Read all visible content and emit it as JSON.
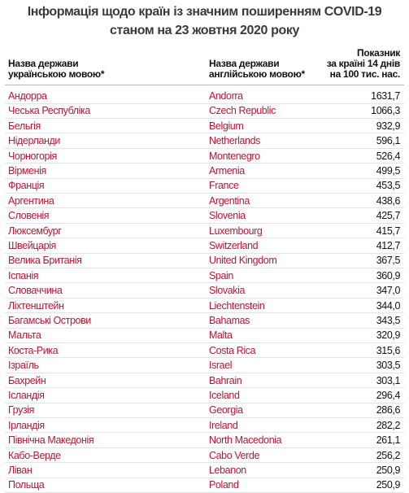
{
  "header": {
    "title": [
      "Інформація щодо країн із значним поширенням COVID-19",
      "станом на 23 жовтня 2020 року"
    ]
  },
  "table": {
    "columns": [
      [
        "Назва держави",
        "українською мовою*"
      ],
      [
        "Назва держави",
        "англійською мовою*"
      ],
      [
        "Показник",
        "за країні 14 днів",
        "на 100 тис. нас."
      ]
    ],
    "rows": [
      [
        "Андорра",
        "Andorra",
        "1631,7"
      ],
      [
        "Чеська Республіка",
        "Czech Republic",
        "1066,3"
      ],
      [
        "Бельгія",
        "Belgium",
        "932,9"
      ],
      [
        "Нідерланди",
        "Netherlands",
        "596,1"
      ],
      [
        "Чорногорія",
        "Montenegro",
        "526,4"
      ],
      [
        "Вірменія",
        "Armenia",
        "499,5"
      ],
      [
        "Франція",
        "France",
        "453,5"
      ],
      [
        "Аргентина",
        "Argentina",
        "438,6"
      ],
      [
        "Словенія",
        "Slovenia",
        "425,7"
      ],
      [
        "Люксембург",
        "Luxembourg",
        "415,7"
      ],
      [
        "Швейцарія",
        "Switzerland",
        "412,7"
      ],
      [
        "Велика Британія",
        "United Kingdom",
        "367,5"
      ],
      [
        "Іспанія",
        "Spain",
        "360,9"
      ],
      [
        "Словаччина",
        "Slovakia",
        "347,0"
      ],
      [
        "Ліхтенштейн",
        "Liechtenstein",
        "344,0"
      ],
      [
        "Багамські Острови",
        "Bahamas",
        "343,5"
      ],
      [
        "Мальта",
        "Malta",
        "320,9"
      ],
      [
        "Коста-Рика",
        "Costa Rica",
        "315,6"
      ],
      [
        "Ізраїль",
        "Israel",
        "303,5"
      ],
      [
        "Бахрейн",
        "Bahrain",
        "303,1"
      ],
      [
        "Ісландія",
        "Iceland",
        "296,4"
      ],
      [
        "Грузія",
        "Georgia",
        "286,6"
      ],
      [
        "Ірландія",
        "Ireland",
        "282,2"
      ],
      [
        "Північна Македонія",
        "North Macedonia",
        "261,1"
      ],
      [
        "Кабо-Верде",
        "Cabo Verde",
        "256,2"
      ],
      [
        "Ліван",
        "Lebanon",
        "250,9"
      ],
      [
        "Польща",
        "Poland",
        "250,9"
      ]
    ]
  }
}
